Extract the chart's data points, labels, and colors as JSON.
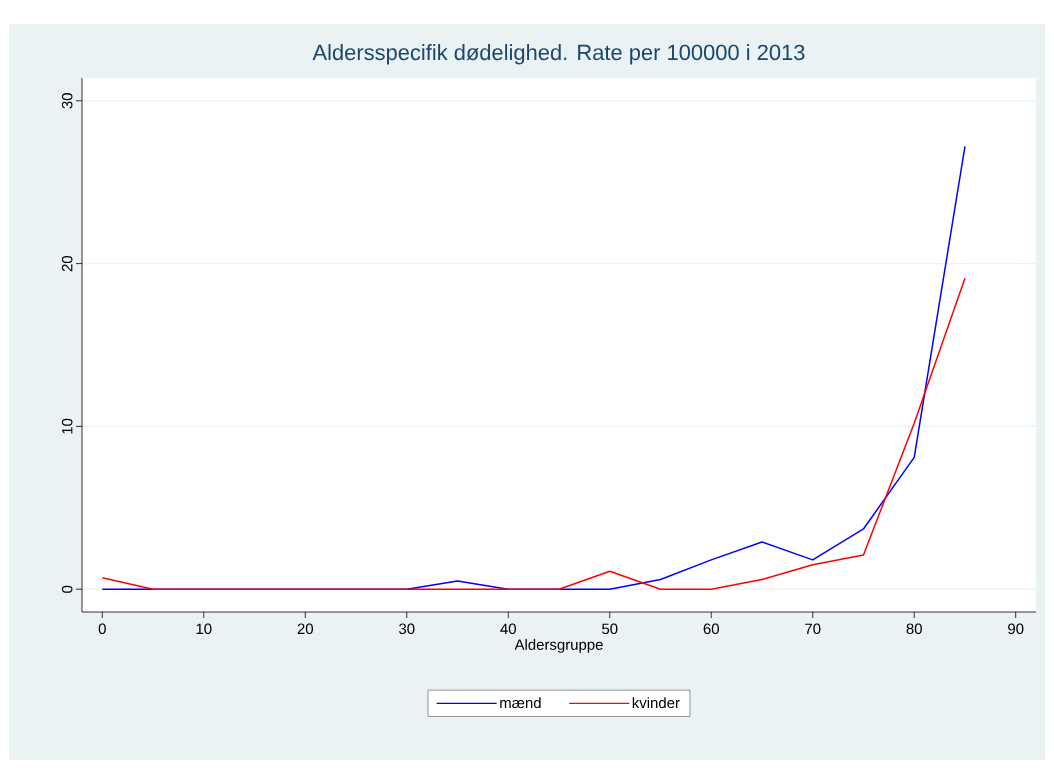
{
  "chart_data": {
    "type": "line",
    "title": "Aldersspecifik dødelighed. Rate per 100000 i 2013",
    "xlabel": "Aldersgruppe",
    "x": [
      0,
      5,
      10,
      15,
      20,
      25,
      30,
      35,
      40,
      45,
      50,
      55,
      60,
      65,
      70,
      75,
      80,
      85
    ],
    "series": [
      {
        "name": "mænd",
        "color": "#0000ff",
        "values": [
          0,
          0,
          0,
          0,
          0,
          0,
          0,
          0.5,
          0,
          0,
          0,
          0.6,
          1.8,
          2.9,
          1.8,
          3.7,
          8.1,
          27.2
        ]
      },
      {
        "name": "kvinder",
        "color": "#ff0000",
        "values": [
          0.7,
          0,
          0,
          0,
          0,
          0,
          0,
          0,
          0,
          0,
          1.1,
          0,
          0,
          0.6,
          1.5,
          2.1,
          10.2,
          19.1
        ]
      }
    ],
    "xlim": [
      -2,
      92
    ],
    "ylim": [
      -1.4,
      31.4
    ],
    "xticks": [
      0,
      10,
      20,
      30,
      40,
      50,
      60,
      70,
      80,
      90
    ],
    "yticks": [
      0,
      10,
      20,
      30
    ],
    "grid": "y",
    "legend": "bottom",
    "marker": "none",
    "line_style": "solid"
  }
}
